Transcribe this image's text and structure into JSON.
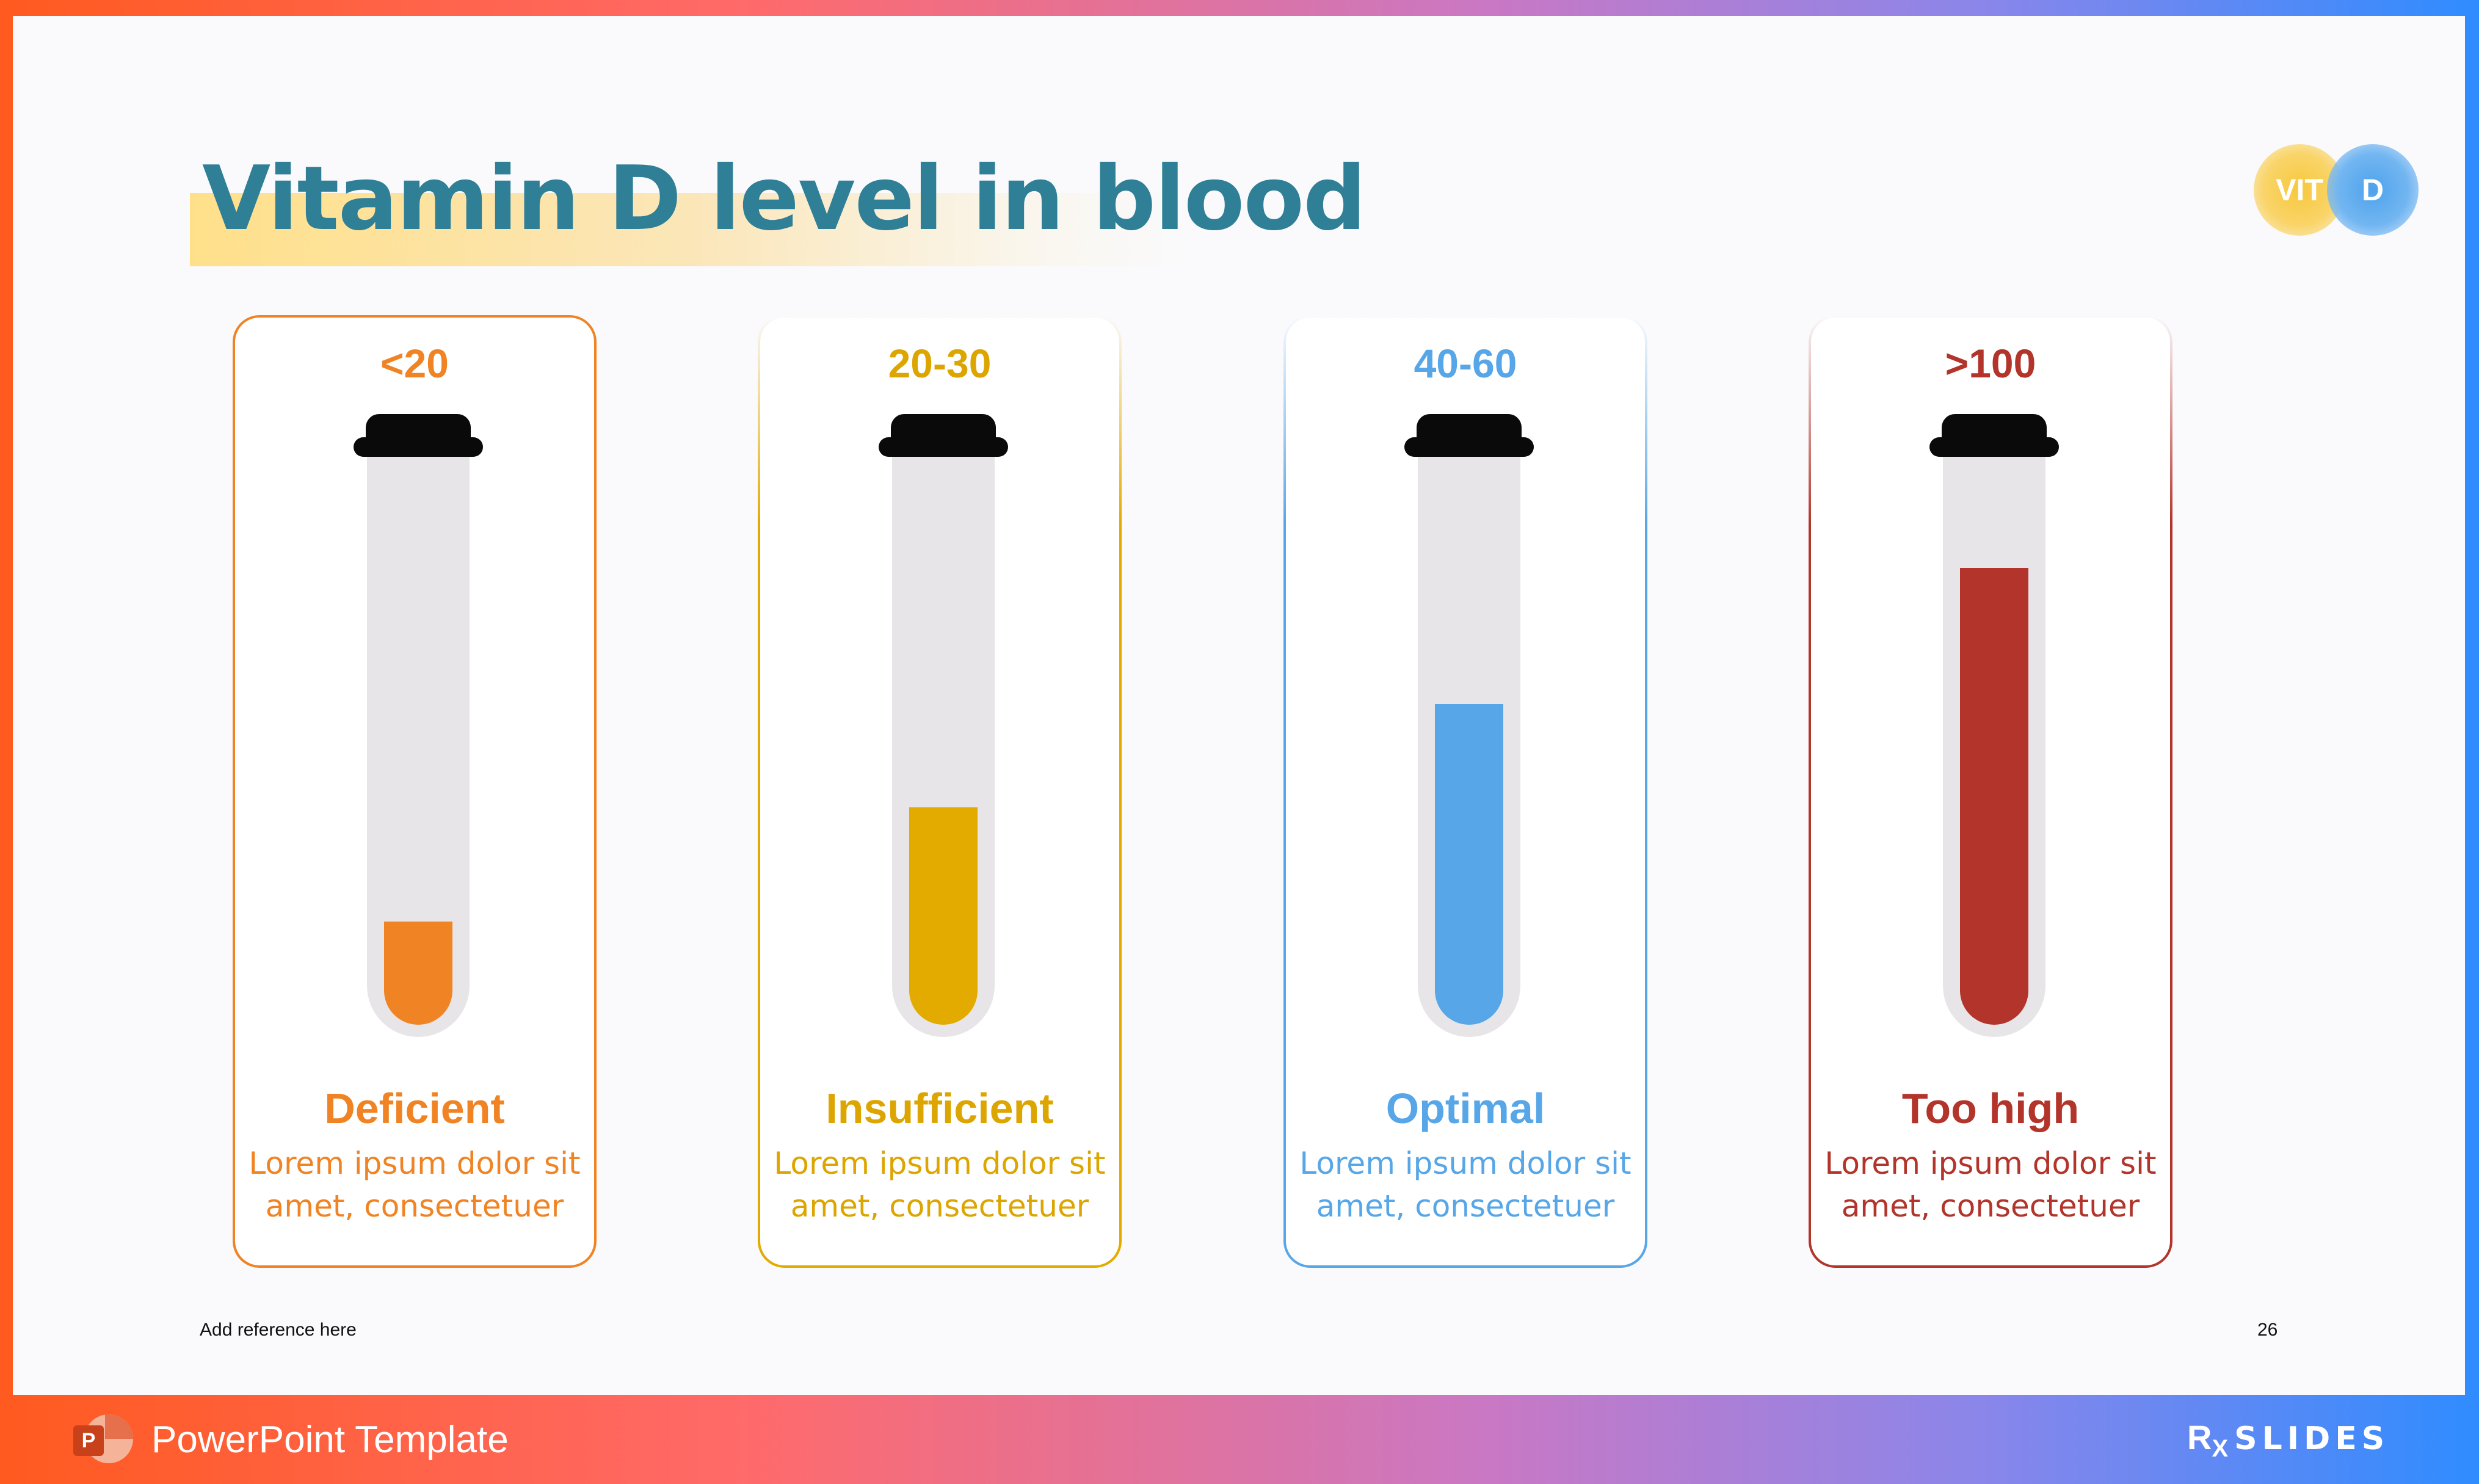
{
  "slide": {
    "title": "Vitamin D level in blood",
    "badge": {
      "left": "VIT",
      "right": "D"
    },
    "reference": "Add reference here",
    "page_number": "26"
  },
  "cards": [
    {
      "range": "<20",
      "status": "Deficient",
      "desc_line1": "Lorem ipsum dolor sit",
      "desc_line2": "amet, consectetuer",
      "color": "#f08424",
      "fill_level": 0.19
    },
    {
      "range": "20-30",
      "status": "Insufficient",
      "desc_line1": "Lorem ipsum dolor sit",
      "desc_line2": "amet, consectetuer",
      "color": "#e3aa00",
      "fill_level": 0.4
    },
    {
      "range": "40-60",
      "status": "Optimal",
      "desc_line1": "Lorem ipsum dolor sit",
      "desc_line2": "amet, consectetuer",
      "color": "#56a6e8",
      "fill_level": 0.59
    },
    {
      "range": ">100",
      "status": "Too high",
      "desc_line1": "Lorem ipsum dolor sit",
      "desc_line2": "amet, consectetuer",
      "color": "#b2342a",
      "fill_level": 0.84
    }
  ],
  "footer": {
    "app_icon": "powerpoint-icon",
    "app_icon_letter": "P",
    "label": "PowerPoint Template",
    "logo_rx": "R",
    "logo_rx_sub": "X",
    "logo_word": "SLIDES"
  }
}
